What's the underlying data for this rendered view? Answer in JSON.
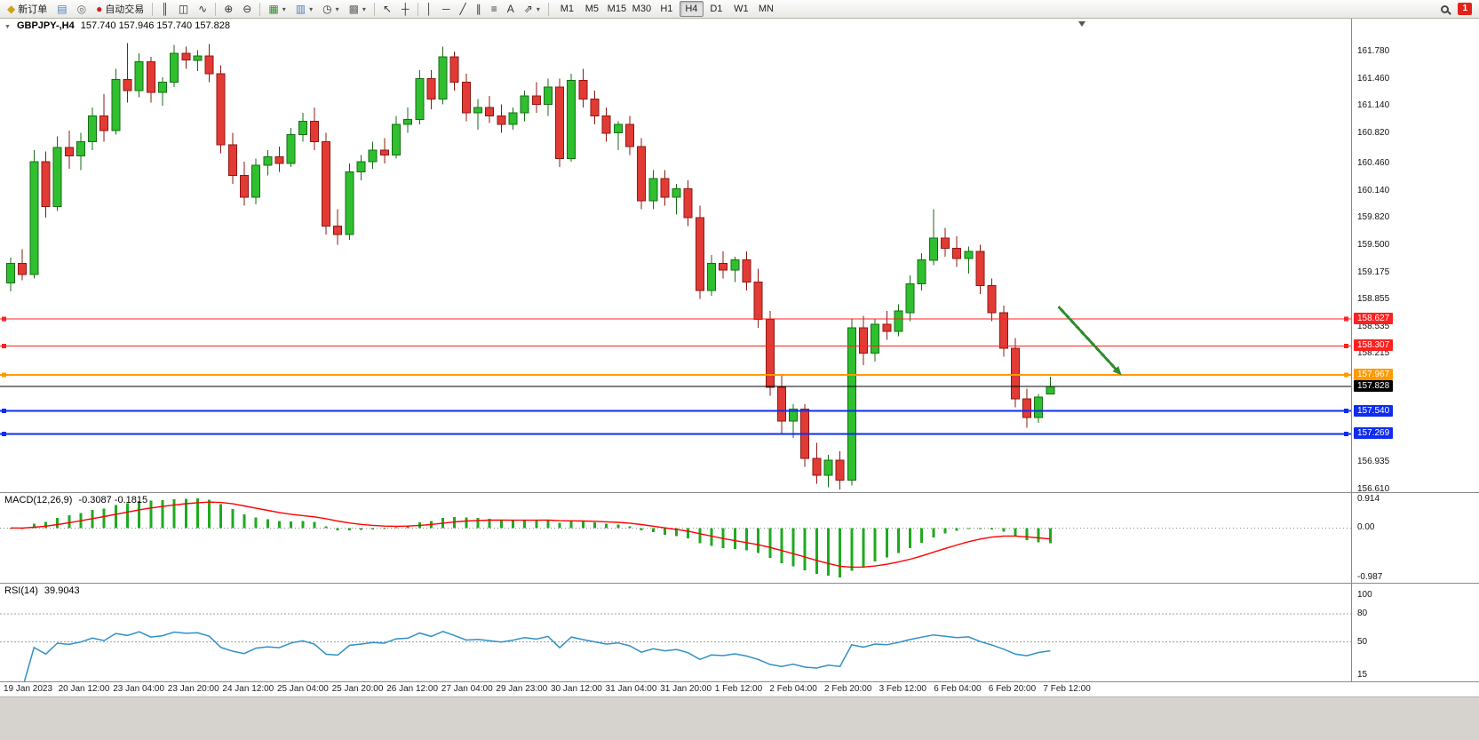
{
  "toolbar": {
    "dropdown_glyph": "▾",
    "notification_count": "1",
    "items": [
      {
        "name": "new-order-button",
        "type": "button",
        "icon": "new-order-icon",
        "glyph": "◆",
        "glyph_color": "#d4a017",
        "label": "新订单"
      },
      {
        "name": "market-watch-button",
        "type": "icon",
        "icon": "market-watch-icon",
        "glyph": "▤",
        "glyph_color": "#4a7ebb"
      },
      {
        "name": "navigator-button",
        "type": "icon",
        "icon": "navigator-icon",
        "glyph": "◎",
        "glyph_color": "#666666"
      },
      {
        "name": "autotrading-button",
        "type": "button",
        "icon": "autotrading-icon",
        "glyph": "●",
        "glyph_color": "#cc2222",
        "label": "自动交易"
      },
      {
        "type": "separator"
      },
      {
        "name": "bar-chart-button",
        "type": "icon",
        "icon": "bar-chart-icon",
        "glyph": "║",
        "glyph_color": "#333333"
      },
      {
        "name": "candlestick-chart-button",
        "type": "icon",
        "icon": "candlestick-chart-icon",
        "glyph": "◫",
        "glyph_color": "#333333"
      },
      {
        "name": "line-chart-button",
        "type": "icon",
        "icon": "line-chart-icon",
        "glyph": "∿",
        "glyph_color": "#333333"
      },
      {
        "type": "separator"
      },
      {
        "name": "zoom-in-button",
        "type": "icon",
        "icon": "zoom-in-icon",
        "glyph": "⊕",
        "glyph_color": "#333333"
      },
      {
        "name": "zoom-out-button",
        "type": "icon",
        "icon": "zoom-out-icon",
        "glyph": "⊖",
        "glyph_color": "#333333"
      },
      {
        "type": "separator"
      },
      {
        "name": "new-chart-button",
        "type": "icon",
        "icon": "new-chart-icon",
        "glyph": "▦",
        "glyph_color": "#2e8b2e",
        "dropdown": true
      },
      {
        "name": "profiles-button",
        "type": "icon",
        "icon": "profiles-icon",
        "glyph": "▥",
        "glyph_color": "#4a7ebb",
        "dropdown": true
      },
      {
        "name": "period-button",
        "type": "icon",
        "icon": "clock-icon",
        "glyph": "◷",
        "glyph_color": "#333333",
        "dropdown": true
      },
      {
        "name": "template-button",
        "type": "icon",
        "icon": "template-icon",
        "glyph": "▩",
        "glyph_color": "#666666",
        "dropdown": true
      },
      {
        "type": "separator"
      },
      {
        "name": "cursor-button",
        "type": "icon",
        "icon": "cursor-icon",
        "glyph": "↖",
        "glyph_color": "#333333"
      },
      {
        "name": "crosshair-button",
        "type": "icon",
        "icon": "crosshair-icon",
        "glyph": "┼",
        "glyph_color": "#333333"
      },
      {
        "type": "separator"
      },
      {
        "name": "vertical-line-button",
        "type": "icon",
        "icon": "vertical-line-icon",
        "glyph": "│",
        "glyph_color": "#333333"
      },
      {
        "name": "horizontal-line-button",
        "type": "icon",
        "icon": "horizontal-line-icon",
        "glyph": "─",
        "glyph_color": "#333333"
      },
      {
        "name": "trendline-button",
        "type": "icon",
        "icon": "trendline-icon",
        "glyph": "╱",
        "glyph_color": "#333333"
      },
      {
        "name": "channel-button",
        "type": "icon",
        "icon": "channel-icon",
        "glyph": "∥",
        "glyph_color": "#333333"
      },
      {
        "name": "fibonacci-button",
        "type": "icon",
        "icon": "fibonacci-icon",
        "glyph": "≡",
        "glyph_color": "#333333"
      },
      {
        "name": "text-button",
        "type": "icon",
        "icon": "text-icon",
        "glyph": "A",
        "glyph_color": "#333333"
      },
      {
        "name": "arrows-button",
        "type": "icon",
        "icon": "arrows-icon",
        "glyph": "⇗",
        "glyph_color": "#333333",
        "dropdown": true
      },
      {
        "type": "separator"
      }
    ],
    "timeframes": [
      "M1",
      "M5",
      "M15",
      "M30",
      "H1",
      "H4",
      "D1",
      "W1",
      "MN"
    ],
    "active_timeframe": "H4"
  },
  "chart": {
    "collapse_glyph": "▼",
    "symbol_title": "GBPJPY-,H4",
    "ohlc_text": "157.740 157.946 157.740 157.828"
  },
  "chart_data": {
    "type": "candlestick",
    "symbol": "GBPJPY-",
    "period": "H4",
    "current_ohlc": {
      "open": 157.74,
      "high": 157.946,
      "low": 157.74,
      "close": 157.828
    },
    "price_axis_range": [
      156.58,
      162.17
    ],
    "price_axis_labels": [
      "161.780",
      "161.460",
      "161.140",
      "160.820",
      "160.460",
      "160.140",
      "159.820",
      "159.500",
      "159.175",
      "158.855",
      "158.535",
      "158.215",
      "156.935",
      "156.610"
    ],
    "time_labels": [
      "19 Jan 2023",
      "20 Jan 12:00",
      "23 Jan 04:00",
      "23 Jan 20:00",
      "24 Jan 12:00",
      "25 Jan 04:00",
      "25 Jan 20:00",
      "26 Jan 12:00",
      "27 Jan 04:00",
      "29 Jan 23:00",
      "30 Jan 12:00",
      "31 Jan 04:00",
      "31 Jan 20:00",
      "1 Feb 12:00",
      "2 Feb 04:00",
      "2 Feb 20:00",
      "3 Feb 12:00",
      "6 Feb 04:00",
      "6 Feb 20:00",
      "7 Feb 12:00"
    ],
    "candles": [
      [
        159.05,
        159.35,
        158.95,
        159.28
      ],
      [
        159.28,
        159.45,
        159.08,
        159.15
      ],
      [
        159.15,
        160.62,
        159.1,
        160.48
      ],
      [
        160.48,
        160.6,
        159.82,
        159.95
      ],
      [
        159.95,
        160.78,
        159.9,
        160.65
      ],
      [
        160.65,
        160.85,
        160.4,
        160.55
      ],
      [
        160.55,
        160.82,
        160.38,
        160.72
      ],
      [
        160.72,
        161.12,
        160.62,
        161.02
      ],
      [
        161.02,
        161.28,
        160.72,
        160.85
      ],
      [
        160.85,
        161.58,
        160.8,
        161.45
      ],
      [
        161.45,
        161.88,
        161.18,
        161.32
      ],
      [
        161.32,
        161.76,
        161.24,
        161.66
      ],
      [
        161.66,
        161.72,
        161.18,
        161.3
      ],
      [
        161.3,
        161.48,
        161.14,
        161.42
      ],
      [
        161.42,
        161.86,
        161.36,
        161.76
      ],
      [
        161.76,
        161.84,
        161.58,
        161.68
      ],
      [
        161.68,
        161.8,
        161.55,
        161.73
      ],
      [
        161.73,
        161.87,
        161.42,
        161.52
      ],
      [
        161.52,
        161.62,
        160.58,
        160.68
      ],
      [
        160.68,
        160.82,
        160.22,
        160.32
      ],
      [
        160.32,
        160.48,
        159.96,
        160.06
      ],
      [
        160.06,
        160.52,
        159.98,
        160.44
      ],
      [
        160.44,
        160.62,
        160.32,
        160.54
      ],
      [
        160.54,
        160.66,
        160.36,
        160.46
      ],
      [
        160.46,
        160.88,
        160.42,
        160.8
      ],
      [
        160.8,
        161.06,
        160.72,
        160.96
      ],
      [
        160.96,
        161.12,
        160.62,
        160.72
      ],
      [
        160.72,
        160.82,
        159.62,
        159.72
      ],
      [
        159.72,
        159.92,
        159.5,
        159.62
      ],
      [
        159.62,
        160.46,
        159.56,
        160.36
      ],
      [
        160.36,
        160.56,
        160.26,
        160.48
      ],
      [
        160.48,
        160.72,
        160.4,
        160.62
      ],
      [
        160.62,
        160.76,
        160.46,
        160.56
      ],
      [
        160.56,
        161.02,
        160.52,
        160.92
      ],
      [
        160.92,
        161.12,
        160.82,
        160.98
      ],
      [
        160.98,
        161.56,
        160.92,
        161.46
      ],
      [
        161.46,
        161.56,
        161.1,
        161.22
      ],
      [
        161.22,
        161.84,
        161.16,
        161.72
      ],
      [
        161.72,
        161.78,
        161.32,
        161.42
      ],
      [
        161.42,
        161.52,
        160.96,
        161.06
      ],
      [
        161.06,
        161.22,
        160.86,
        161.12
      ],
      [
        161.12,
        161.26,
        160.94,
        161.02
      ],
      [
        161.02,
        161.16,
        160.82,
        160.92
      ],
      [
        160.92,
        161.12,
        160.86,
        161.06
      ],
      [
        161.06,
        161.32,
        160.96,
        161.26
      ],
      [
        161.26,
        161.42,
        161.06,
        161.16
      ],
      [
        161.16,
        161.46,
        161.02,
        161.36
      ],
      [
        161.36,
        161.46,
        160.42,
        160.52
      ],
      [
        160.52,
        161.52,
        160.48,
        161.44
      ],
      [
        161.44,
        161.58,
        161.12,
        161.22
      ],
      [
        161.22,
        161.32,
        160.92,
        161.02
      ],
      [
        161.02,
        161.12,
        160.72,
        160.82
      ],
      [
        160.82,
        160.96,
        160.62,
        160.92
      ],
      [
        160.92,
        161.02,
        160.56,
        160.66
      ],
      [
        160.66,
        160.76,
        159.92,
        160.02
      ],
      [
        160.02,
        160.38,
        159.92,
        160.28
      ],
      [
        160.28,
        160.38,
        159.96,
        160.06
      ],
      [
        160.06,
        160.22,
        159.86,
        160.16
      ],
      [
        160.16,
        160.26,
        159.72,
        159.82
      ],
      [
        159.82,
        159.96,
        158.86,
        158.96
      ],
      [
        158.96,
        159.38,
        158.9,
        159.28
      ],
      [
        159.28,
        159.42,
        159.1,
        159.2
      ],
      [
        159.2,
        159.36,
        159.06,
        159.32
      ],
      [
        159.32,
        159.42,
        158.96,
        159.06
      ],
      [
        159.06,
        159.22,
        158.52,
        158.62
      ],
      [
        158.62,
        158.72,
        157.72,
        157.82
      ],
      [
        157.82,
        157.96,
        157.28,
        157.42
      ],
      [
        157.42,
        157.62,
        157.22,
        157.56
      ],
      [
        157.56,
        157.62,
        156.88,
        156.98
      ],
      [
        156.98,
        157.16,
        156.68,
        156.78
      ],
      [
        156.78,
        157.02,
        156.64,
        156.96
      ],
      [
        156.96,
        157.06,
        156.61,
        156.72
      ],
      [
        156.72,
        158.62,
        156.66,
        158.52
      ],
      [
        158.52,
        158.66,
        158.08,
        158.22
      ],
      [
        158.22,
        158.62,
        158.12,
        158.56
      ],
      [
        158.56,
        158.72,
        158.38,
        158.48
      ],
      [
        158.48,
        158.8,
        158.42,
        158.72
      ],
      [
        158.7,
        159.14,
        158.6,
        159.04
      ],
      [
        159.04,
        159.4,
        158.96,
        159.32
      ],
      [
        159.32,
        159.92,
        159.26,
        159.58
      ],
      [
        159.58,
        159.7,
        159.36,
        159.46
      ],
      [
        159.46,
        159.6,
        159.24,
        159.34
      ],
      [
        159.34,
        159.48,
        159.16,
        159.42
      ],
      [
        159.42,
        159.5,
        158.92,
        159.02
      ],
      [
        159.02,
        159.1,
        158.6,
        158.7
      ],
      [
        158.7,
        158.78,
        158.18,
        158.28
      ],
      [
        158.28,
        158.4,
        157.58,
        157.68
      ],
      [
        157.68,
        157.8,
        157.34,
        157.46
      ],
      [
        157.46,
        157.74,
        157.4,
        157.7
      ],
      [
        157.74,
        157.946,
        157.74,
        157.828
      ]
    ],
    "colors": {
      "bull_fill": "#2fbf2f",
      "bull_stroke": "#156e15",
      "bear_fill": "#e23b35",
      "bear_stroke": "#8e1712",
      "macd_histogram": "#1faa1f",
      "macd_signal": "#ff0000",
      "rsi_line": "#3090c7"
    },
    "hlines": [
      {
        "label": "158.627",
        "price": 158.627,
        "color": "#ff2020",
        "thickness": 1
      },
      {
        "label": "158.307",
        "price": 158.307,
        "color": "#ff2020",
        "thickness": 1
      },
      {
        "label": "157.967",
        "price": 157.967,
        "color": "#ff9a00",
        "thickness": 2
      },
      {
        "label": "157.540",
        "price": 157.54,
        "color": "#0f2cef",
        "thickness": 2
      },
      {
        "label": "157.269",
        "price": 157.269,
        "color": "#0f2cef",
        "thickness": 2
      }
    ],
    "current_price_line": {
      "label": "157.828",
      "price": 157.828,
      "color": "#000000"
    },
    "arrow": {
      "from_candle": 89.7,
      "from_price": 158.77,
      "to_candle": 95.1,
      "to_price": 157.96,
      "color": "#2e8b2e"
    },
    "macd": {
      "title": "MACD(12,26,9)",
      "values_text": "-0.3087 -0.1815",
      "fast": 12,
      "slow": 26,
      "signal": 9,
      "scale_labels": [
        "0.914",
        "0.00",
        "-0.987"
      ]
    },
    "rsi": {
      "title": "RSI(14)",
      "value_text": "39.9043",
      "period": 14,
      "levels": [
        80,
        50
      ],
      "scale_labels": [
        100,
        80,
        50,
        15
      ]
    }
  }
}
